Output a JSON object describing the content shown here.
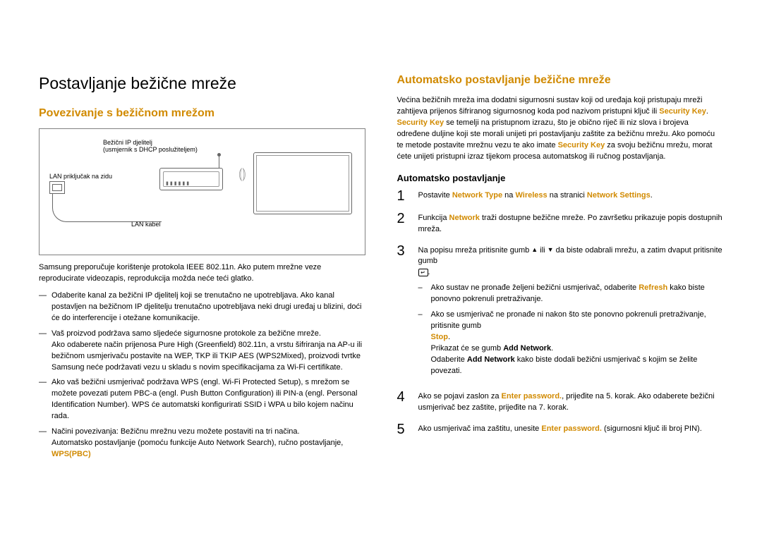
{
  "left": {
    "main_title": "Postavljanje bežične mreže",
    "sub_title": "Povezivanje s bežičnom mrežom",
    "diagram": {
      "label_top1": "Bežični IP djelitelj",
      "label_top2": "(usmjernik s DHCP poslužiteljem)",
      "label_port": "LAN priključak na zidu",
      "label_cable": "LAN kabel"
    },
    "p1": "Samsung preporučuje korištenje protokola IEEE 802.11n. Ako putem mrežne veze reproducirate videozapis, reprodukcija možda neće teći glatko.",
    "bullets": [
      "Odaberite kanal za bežični IP djelitelj koji se trenutačno ne upotrebljava. Ako kanal postavljen na bežičnom IP djelitelju trenutačno upotrebljava neki drugi uređaj u blizini, doći će do interferencije i otežane komunikacije.",
      "Vaš proizvod podržava samo sljedeće sigurnosne protokole za bežične mreže.\nAko odaberete način prijenosa Pure High (Greenfield) 802.11n, a vrstu šifriranja na AP-u ili bežičnom usmjerivaču postavite na WEP, TKP ili TKIP AES (WPS2Mixed), proizvodi tvrtke Samsung neće podržavati vezu u skladu s novim specifikacijama za Wi-Fi certifikate.",
      "Ako vaš bežični usmjerivač podržava WPS (engl. Wi-Fi Protected Setup), s mrežom se možete povezati putem PBC-a (engl. Push Button Configuration) ili PIN-a (engl. Personal Identification Number). WPS će automatski konfigurirati SSID i WPA u bilo kojem načinu rada.",
      "Načini povezivanja: Bežičnu mrežnu vezu možete postaviti na tri načina.\nAutomatsko postavljanje (pomoću funkcije Auto Network Search), ručno postavljanje, "
    ],
    "wpspbc": "WPS(PBC)"
  },
  "right": {
    "sub_title": "Automatsko postavljanje bežične mreže",
    "p1_a": "Većina bežičnih mreža ima dodatni sigurnosni sustav koji od uređaja koji pristupaju mreži zahtijeva prijenos šifriranog sigurnosnog koda pod nazivom pristupni ključ ili ",
    "seckey": "Security Key",
    "p1_b": ". ",
    "p1_c": " se temelji na pristupnom izrazu, što je obično riječ ili niz slova i brojeva određene duljine koji ste morali unijeti pri postavljanju zaštite za bežičnu mrežu. Ako pomoću te metode postavite mrežnu vezu te ako imate ",
    "p1_d": " za svoju bežičnu mrežu, morat ćete unijeti pristupni izraz tijekom procesa automatskog ili ručnog postavljanja.",
    "sub_sub": "Automatsko postavljanje",
    "steps": {
      "s1_a": "Postavite ",
      "s1_nt": "Network Type",
      "s1_b": " na ",
      "s1_w": "Wireless",
      "s1_c": " na stranici ",
      "s1_ns": "Network Settings",
      "s1_d": ".",
      "s2_a": "Funkcija ",
      "s2_n": "Network",
      "s2_b": " traži dostupne bežične mreže. Po završetku prikazuje popis dostupnih mreža.",
      "s3_a": "Na popisu mreža pritisnite gumb ",
      "s3_b": " ili ",
      "s3_c": " da biste odabrali mrežu, a zatim dvaput pritisnite gumb ",
      "s3_d": ".",
      "s3_sub1_a": "Ako sustav ne pronađe željeni bežični usmjerivač, odaberite ",
      "s3_sub1_r": "Refresh",
      "s3_sub1_b": " kako biste ponovno pokrenuli pretraživanje.",
      "s3_sub2_a": "Ako se usmjerivač ne pronađe ni nakon što ste ponovno pokrenuli pretraživanje, pritisnite gumb ",
      "s3_sub2_stop": "Stop",
      "s3_sub2_b": ".",
      "s3_sub2_c": "Prikazat će se gumb ",
      "s3_sub2_an": "Add Network",
      "s3_sub2_d": ".",
      "s3_sub2_e": "Odaberite ",
      "s3_sub2_f": " kako biste dodali bežični usmjerivač s kojim se želite povezati.",
      "s4_a": "Ako se pojavi zaslon za ",
      "s4_ep": "Enter password.",
      "s4_b": ", prijeđite na 5. korak. Ako odaberete bežični usmjerivač bez zaštite, prijeđite na 7. korak.",
      "s5_a": "Ako usmjerivač ima zaštitu, unesite ",
      "s5_b": " (sigurnosni ključ ili broj PIN)."
    }
  }
}
